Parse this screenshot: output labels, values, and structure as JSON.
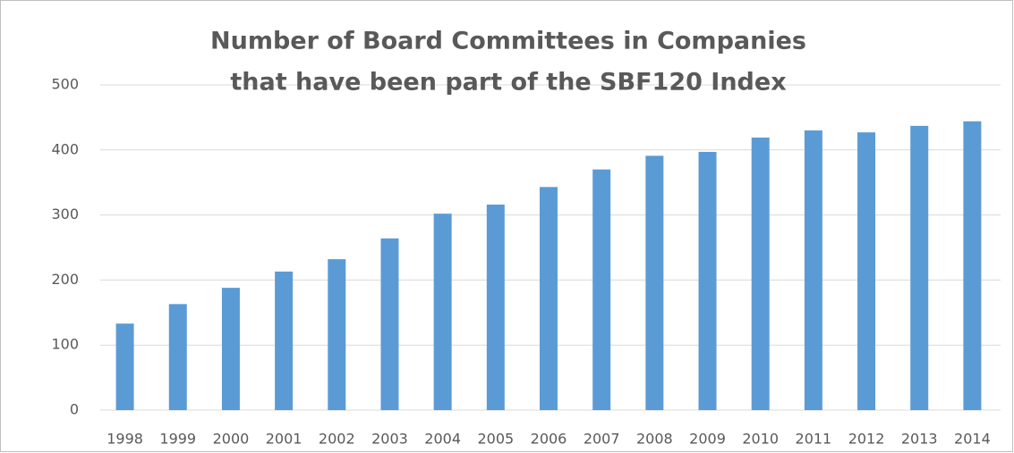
{
  "chart_data": {
    "type": "bar",
    "title": [
      "Number of Board Committees in Companies",
      "that have been part of the SBF120 Index"
    ],
    "categories": [
      "1998",
      "1999",
      "2000",
      "2001",
      "2002",
      "2003",
      "2004",
      "2005",
      "2006",
      "2007",
      "2008",
      "2009",
      "2010",
      "2011",
      "2012",
      "2013",
      "2014"
    ],
    "values": [
      133,
      163,
      188,
      213,
      232,
      264,
      302,
      316,
      343,
      370,
      391,
      397,
      419,
      430,
      427,
      437,
      444
    ],
    "color": "#5b9bd5",
    "ylim": [
      0,
      500
    ],
    "yticks": [
      0,
      100,
      200,
      300,
      400,
      500
    ],
    "grid": true
  }
}
